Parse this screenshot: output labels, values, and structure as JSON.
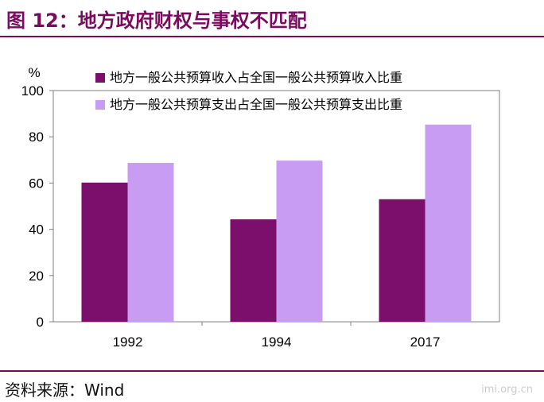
{
  "figure": {
    "title": "图 12：地方政府财权与事权不匹配",
    "source": "资料来源：Wind"
  },
  "watermark": {
    "text": "imi.org.cn"
  },
  "chart_data": {
    "type": "bar",
    "categories": [
      "1992",
      "1994",
      "2017"
    ],
    "series": [
      {
        "name": "地方一般公共预算收入占全国一般公共预算收入比重",
        "values": [
          60.2,
          44.3,
          53.0
        ],
        "color": "#7b0f6b"
      },
      {
        "name": "地方一般公共预算支出占全国一般公共预算支出比重",
        "values": [
          68.7,
          69.7,
          85.3
        ],
        "color": "#c79cf2"
      }
    ],
    "ylabel": "%",
    "ylim": [
      0,
      100
    ],
    "yticks": [
      0,
      20,
      40,
      60,
      80,
      100
    ],
    "legend_position": "top-left",
    "grid": false
  }
}
